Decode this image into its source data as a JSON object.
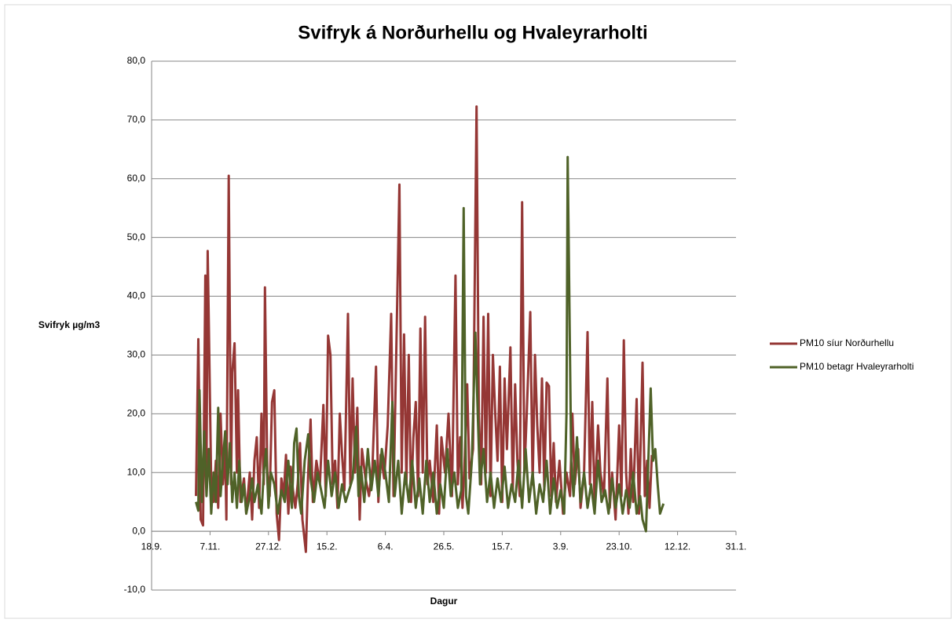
{
  "chart_data": {
    "type": "line",
    "title": "Svifryk á Norðurhellu og Hvaleyrarholti",
    "x_label": "Dagur",
    "y_label": "Svifryk µg/m3",
    "xlim": [
      0,
      500
    ],
    "xticks": [
      {
        "value": 0,
        "label": "18.9."
      },
      {
        "value": 50,
        "label": "7.11."
      },
      {
        "value": 100,
        "label": "27.12."
      },
      {
        "value": 150,
        "label": "15.2."
      },
      {
        "value": 200,
        "label": "6.4."
      },
      {
        "value": 250,
        "label": "26.5."
      },
      {
        "value": 300,
        "label": "15.7."
      },
      {
        "value": 350,
        "label": "3.9."
      },
      {
        "value": 400,
        "label": "23.10."
      },
      {
        "value": 450,
        "label": "12.12."
      },
      {
        "value": 500,
        "label": "31.1."
      }
    ],
    "ylim": [
      -10,
      80
    ],
    "yticks": [
      {
        "value": -10,
        "label": "-10,0"
      },
      {
        "value": 0,
        "label": "0,0"
      },
      {
        "value": 10,
        "label": "10,0"
      },
      {
        "value": 20,
        "label": "20,0"
      },
      {
        "value": 30,
        "label": "30,0"
      },
      {
        "value": 40,
        "label": "40,0"
      },
      {
        "value": 50,
        "label": "50,0"
      },
      {
        "value": 60,
        "label": "60,0"
      },
      {
        "value": 70,
        "label": "70,0"
      },
      {
        "value": 80,
        "label": "80,0"
      }
    ],
    "grid": true,
    "legend": "right",
    "series": [
      {
        "name": "PM10 síur Norðurhellu",
        "color": "#953735",
        "x": [
          38,
          40,
          42,
          44,
          46,
          47,
          48,
          49,
          51,
          53,
          55,
          57,
          59,
          61,
          63,
          64,
          66,
          68,
          69,
          71,
          73,
          74,
          76,
          79,
          81,
          84,
          86,
          88,
          90,
          92,
          94,
          96,
          97,
          99,
          101,
          103,
          105,
          107,
          109,
          111,
          113,
          115,
          117,
          119,
          121,
          123,
          125,
          127,
          129,
          132,
          134,
          136,
          138,
          141,
          144,
          147,
          149,
          151,
          153,
          155,
          157,
          159,
          161,
          163,
          165,
          168,
          170,
          172,
          174,
          176,
          178,
          180,
          183,
          186,
          189,
          192,
          194,
          196,
          199,
          202,
          205,
          207,
          209,
          212,
          214,
          216,
          218,
          220,
          222,
          224,
          226,
          228,
          230,
          232,
          234,
          236,
          238,
          241,
          244,
          246,
          248,
          251,
          254,
          257,
          260,
          262,
          264,
          266,
          268,
          270,
          272,
          275,
          278,
          280,
          282,
          284,
          286,
          288,
          290,
          292,
          294,
          296,
          298,
          300,
          302,
          304,
          307,
          309,
          311,
          313,
          315,
          317,
          319,
          321,
          324,
          326,
          328,
          330,
          332,
          334,
          336,
          338,
          340,
          342,
          344,
          346,
          349,
          352,
          355,
          358,
          360,
          362,
          365,
          367,
          370,
          373,
          375,
          377,
          379,
          382,
          384,
          387,
          390,
          392,
          394,
          397,
          400,
          402,
          404,
          406,
          408,
          410,
          412,
          415,
          417,
          420,
          422,
          424,
          426,
          428
        ],
        "values": [
          6,
          32.7,
          2,
          1,
          43.5,
          10,
          47.7,
          35,
          8,
          5,
          12,
          4,
          20,
          8,
          14,
          2,
          60.5,
          8,
          27,
          32,
          10,
          24,
          5,
          9,
          3,
          10,
          2,
          12,
          16,
          4,
          20,
          8,
          41.5,
          10,
          6,
          22,
          24,
          3,
          -1.5,
          9,
          6,
          13,
          3,
          11,
          7,
          4,
          8,
          15,
          2,
          -3.5,
          10,
          19,
          5,
          12,
          8,
          21.5,
          6,
          33.3,
          30,
          8,
          12,
          4,
          20,
          13,
          7,
          37,
          8,
          26,
          10,
          21,
          2,
          14,
          9,
          6,
          11,
          28,
          5,
          13,
          9,
          18,
          37,
          6,
          27,
          59,
          10,
          33.5,
          8,
          30,
          5,
          16,
          22,
          6,
          34.5,
          10,
          36.5,
          8,
          12,
          5,
          18,
          3,
          16,
          10,
          20,
          6,
          43.5,
          8,
          16,
          4,
          13,
          25,
          9,
          14,
          72.3,
          20,
          8,
          36.5,
          10,
          37,
          6,
          30,
          20,
          12,
          28,
          5,
          26,
          14,
          31.3,
          7,
          25,
          12,
          6,
          56,
          10,
          20,
          37.3,
          8,
          30,
          18,
          10,
          26,
          7,
          25.3,
          24.7,
          6,
          15,
          5,
          12,
          3,
          10,
          6,
          20,
          8,
          14,
          4,
          10,
          33.9,
          8,
          22,
          5,
          18,
          10,
          6,
          26,
          4,
          10,
          2,
          18,
          6,
          32.5,
          10,
          3,
          14,
          5,
          22.5,
          3,
          28.7,
          6,
          12,
          4,
          13
        ]
      },
      {
        "name": "PM10 betagr Hvaleyrarholti",
        "color": "#4f6228",
        "x": [
          38,
          40,
          41,
          43,
          45,
          47,
          49,
          51,
          53,
          55,
          57,
          59,
          61,
          63,
          65,
          67,
          69,
          71,
          73,
          75,
          77,
          79,
          81,
          84,
          86,
          88,
          91,
          94,
          96,
          98,
          100,
          102,
          105,
          108,
          111,
          114,
          117,
          120,
          122,
          124,
          126,
          128,
          131,
          134,
          136,
          139,
          142,
          145,
          148,
          151,
          154,
          157,
          160,
          163,
          166,
          169,
          172,
          175,
          177,
          179,
          182,
          185,
          188,
          191,
          194,
          197,
          200,
          203,
          206,
          208,
          211,
          214,
          217,
          220,
          223,
          226,
          229,
          232,
          235,
          238,
          241,
          244,
          247,
          250,
          253,
          256,
          259,
          262,
          265,
          267,
          269,
          271,
          274,
          277,
          279,
          281,
          284,
          287,
          290,
          293,
          296,
          299,
          302,
          305,
          308,
          311,
          314,
          317,
          320,
          323,
          326,
          329,
          332,
          335,
          338,
          341,
          344,
          347,
          350,
          353,
          355,
          356,
          357,
          359,
          361,
          364,
          367,
          370,
          373,
          376,
          379,
          382,
          385,
          388,
          391,
          394,
          397,
          400,
          403,
          406,
          409,
          412,
          415,
          418,
          420,
          423,
          425,
          427,
          429,
          431,
          433,
          435,
          438
        ],
        "values": [
          5,
          3.5,
          24,
          5,
          17,
          6,
          14,
          3,
          10,
          5,
          21,
          6,
          12,
          17,
          8,
          15,
          5,
          10,
          4,
          12,
          5,
          8,
          3,
          6,
          9,
          5,
          8,
          3,
          10,
          14,
          4,
          10,
          8,
          3,
          7,
          5,
          12,
          4,
          15,
          17.5,
          6,
          3,
          12,
          16.5,
          9,
          5,
          10,
          7,
          4,
          12,
          6,
          10,
          4,
          8,
          5,
          7,
          9,
          17.8,
          6,
          11,
          5,
          14,
          7,
          12,
          6,
          14,
          10,
          5,
          22,
          6,
          12,
          3,
          10,
          5,
          12,
          4,
          9,
          3,
          12,
          5,
          10,
          3,
          8,
          4,
          14,
          6,
          10,
          4,
          7,
          55,
          6,
          3,
          12,
          33.8,
          20,
          8,
          14,
          5,
          10,
          4,
          9,
          5,
          11,
          4,
          8,
          5,
          12,
          4,
          14,
          5,
          10,
          3,
          8,
          5,
          12,
          3,
          9,
          4,
          7,
          3,
          20,
          63.7,
          47,
          12,
          6,
          16,
          5,
          10,
          4,
          8,
          3,
          12,
          5,
          7,
          3,
          9,
          4,
          8,
          3,
          7,
          4,
          10,
          3,
          6,
          2,
          0,
          12,
          24.3,
          12,
          14,
          8,
          3,
          4.7
        ]
      }
    ]
  }
}
